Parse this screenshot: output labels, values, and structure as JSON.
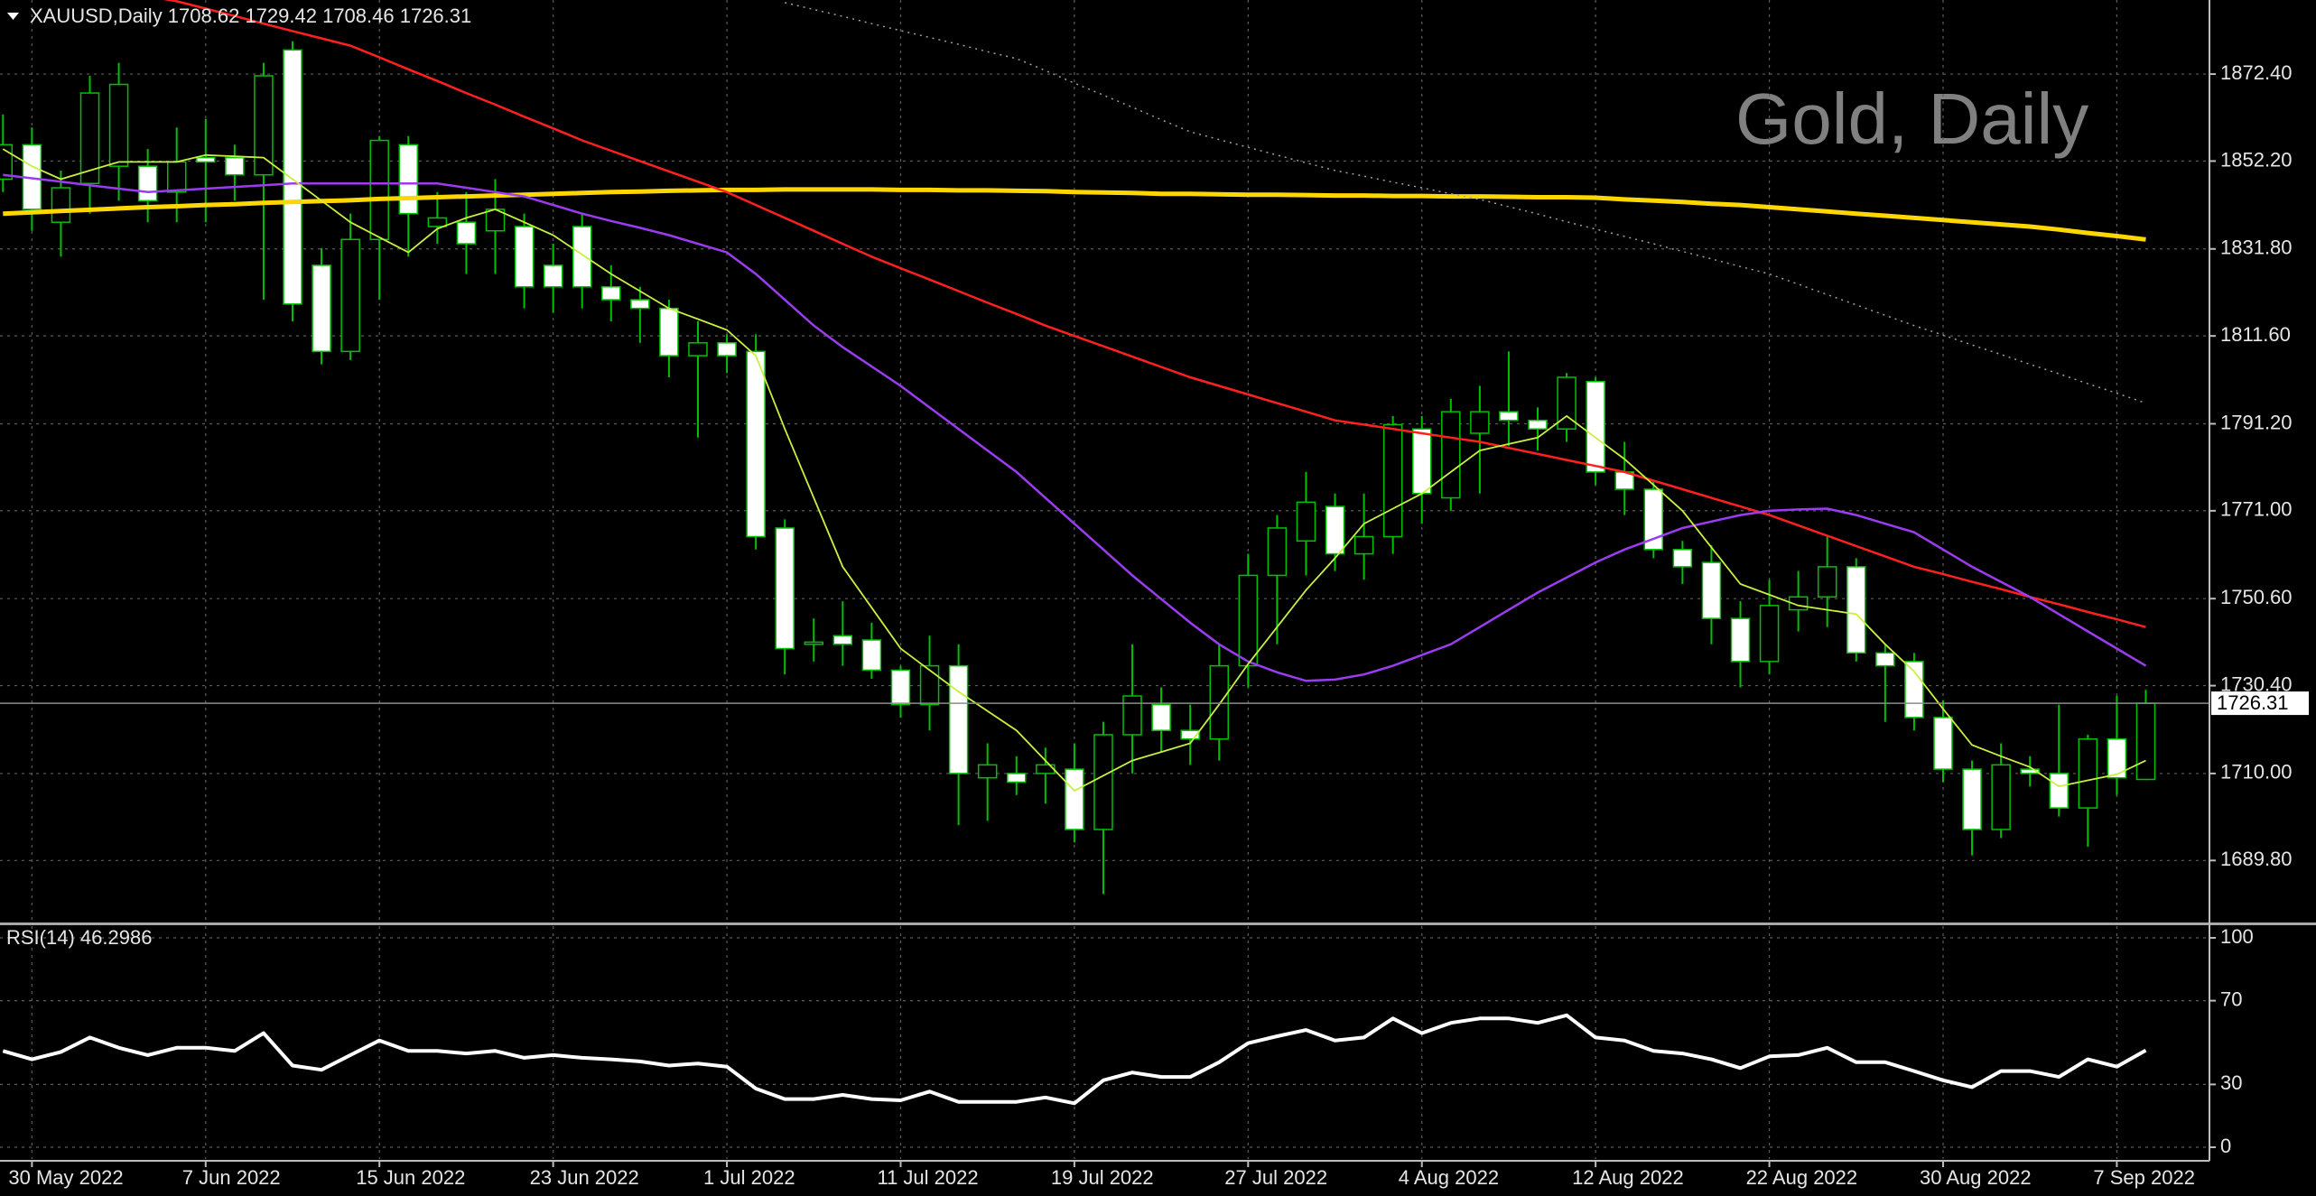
{
  "chart_data": [
    {
      "type": "candlestick",
      "title": "XAUUSD,Daily  1708.62 1729.42 1708.46 1726.31",
      "watermark": "Gold, Daily",
      "categories": [
        null,
        "30 May 2022",
        null,
        null,
        null,
        null,
        null,
        "7 Jun 2022",
        null,
        null,
        null,
        null,
        null,
        "15 Jun 2022",
        null,
        null,
        null,
        null,
        null,
        "23 Jun 2022",
        null,
        null,
        null,
        null,
        null,
        "1 Jul 2022",
        null,
        null,
        null,
        null,
        null,
        "11 Jul 2022",
        null,
        null,
        null,
        null,
        null,
        "19 Jul 2022",
        null,
        null,
        null,
        null,
        null,
        "27 Jul 2022",
        null,
        null,
        null,
        null,
        null,
        "4 Aug 2022",
        null,
        null,
        null,
        null,
        null,
        "12 Aug 2022",
        null,
        null,
        null,
        null,
        null,
        "22 Aug 2022",
        null,
        null,
        null,
        null,
        null,
        "30 Aug 2022",
        null,
        null,
        null,
        null,
        null,
        "7 Sep 2022",
        null
      ],
      "open": [
        1848,
        1856,
        1838,
        1847,
        1851,
        1851,
        1845,
        1853,
        1853,
        1849,
        1878,
        1828,
        1808,
        1834,
        1856,
        1837,
        1838,
        1836,
        1837,
        1828,
        1837,
        1823,
        1820,
        1818,
        1807,
        1810,
        1808,
        1767,
        1740,
        1742,
        1741,
        1734,
        1726,
        1735,
        1709,
        1710,
        1710,
        1711,
        1697,
        1719,
        1726,
        1720,
        1718,
        1735,
        1756,
        1764,
        1772,
        1761,
        1765,
        1790,
        1774,
        1789,
        1794,
        1792,
        1790,
        1801,
        1780,
        1776,
        1762,
        1759,
        1746,
        1736,
        1748,
        1751,
        1758,
        1738,
        1736,
        1723,
        1711,
        1697,
        1711,
        1710,
        1702,
        1718,
        1708.62
      ],
      "high": [
        1863,
        1860,
        1850,
        1872,
        1875,
        1855,
        1860,
        1862,
        1856,
        1875,
        1880,
        1832,
        1840,
        1858,
        1858,
        1845,
        1845,
        1848,
        1840,
        1833,
        1840,
        1828,
        1823,
        1820,
        1815,
        1812,
        1812,
        1769,
        1746,
        1750,
        1745,
        1735,
        1742,
        1740,
        1717,
        1714,
        1716,
        1717,
        1722,
        1740,
        1730,
        1726,
        1740,
        1761,
        1770,
        1780,
        1775,
        1775,
        1793,
        1793,
        1797,
        1800,
        1808,
        1795,
        1803,
        1802,
        1787,
        1778,
        1764,
        1763,
        1750,
        1755,
        1757,
        1765,
        1760,
        1740,
        1738,
        1727,
        1713,
        1717,
        1714,
        1726,
        1719,
        1728,
        1729.42
      ],
      "low": [
        1845,
        1836,
        1830,
        1840,
        1843,
        1838,
        1838,
        1838,
        1843,
        1820,
        1815,
        1805,
        1806,
        1820,
        1830,
        1833,
        1826,
        1826,
        1818,
        1817,
        1818,
        1815,
        1810,
        1802,
        1788,
        1803,
        1762,
        1733,
        1736,
        1735,
        1732,
        1723,
        1720,
        1698,
        1699,
        1705,
        1703,
        1694,
        1682,
        1710,
        1715,
        1712,
        1713,
        1730,
        1740,
        1756,
        1757,
        1755,
        1761,
        1768,
        1771,
        1775,
        1786,
        1785,
        1787,
        1777,
        1770,
        1760,
        1754,
        1740,
        1730,
        1733,
        1743,
        1744,
        1736,
        1722,
        1720,
        1708,
        1691,
        1695,
        1707,
        1700,
        1693,
        1705,
        1708.46
      ],
      "close": [
        1856,
        1841,
        1846,
        1868,
        1870,
        1843,
        1852,
        1852,
        1849,
        1872,
        1819,
        1808,
        1834,
        1857,
        1840,
        1839,
        1833,
        1841,
        1823,
        1823,
        1823,
        1820,
        1818,
        1807,
        1810,
        1807,
        1765,
        1739,
        1740.5,
        1740,
        1734,
        1726,
        1735,
        1710,
        1712,
        1708,
        1712,
        1697,
        1719,
        1728,
        1720,
        1718,
        1735,
        1756,
        1767,
        1773,
        1761,
        1765,
        1791,
        1775,
        1794,
        1794,
        1792,
        1790,
        1802,
        1780,
        1776,
        1762,
        1758,
        1746,
        1736,
        1749,
        1751,
        1758,
        1738,
        1735,
        1723,
        1711,
        1697,
        1712,
        1710,
        1702,
        1718,
        1709,
        1726.31
      ],
      "up_color": "#000000",
      "down_color": "#ffffff",
      "wick_color": "#00c000",
      "series": [
        {
          "color": "#ffd700",
          "values": [
            1840.0,
            1840.3,
            1840.6,
            1840.9,
            1841.2,
            1841.5,
            1841.7,
            1842.0,
            1842.2,
            1842.5,
            1842.7,
            1842.9,
            1843.1,
            1843.4,
            1843.6,
            1843.8,
            1844.0,
            1844.2,
            1844.4,
            1844.6,
            1844.8,
            1845.0,
            1845.1,
            1845.3,
            1845.4,
            1845.5,
            1845.5,
            1845.6,
            1845.6,
            1845.6,
            1845.6,
            1845.5,
            1845.5,
            1845.4,
            1845.4,
            1845.3,
            1845.2,
            1845.0,
            1844.9,
            1844.8,
            1844.6,
            1844.6,
            1844.5,
            1844.4,
            1844.4,
            1844.3,
            1844.2,
            1844.2,
            1844.1,
            1844.1,
            1844.0,
            1844.0,
            1843.9,
            1843.8,
            1843.8,
            1843.7,
            1843.3,
            1843.0,
            1842.7,
            1842.3,
            1842.0,
            1841.5,
            1841.0,
            1840.5,
            1840.0,
            1839.5,
            1839.0,
            1838.5,
            1838.0,
            1837.5,
            1837.0,
            1836.3,
            1835.5,
            1834.8,
            1834.0
          ]
        },
        {
          "color": "#ff2020",
          "values": [
            null,
            null,
            null,
            null,
            null,
            1890.5,
            1889.3,
            1887.6,
            1885.9,
            1884.1,
            1882.4,
            1880.7,
            1879,
            1876.3,
            1873.5,
            1870.8,
            1868,
            1865.3,
            1862.5,
            1859.8,
            1857,
            1854.6,
            1852.2,
            1849.8,
            1847.4,
            1845,
            1842,
            1839,
            1836,
            1833,
            1830,
            1827.3,
            1824.7,
            1822,
            1819.3,
            1816.7,
            1814,
            1811.6,
            1809.2,
            1806.8,
            1804.4,
            1802,
            1800,
            1798,
            1796,
            1794,
            1792,
            1791,
            1790,
            1789,
            1788,
            1787,
            1785.6,
            1784.2,
            1782.8,
            1781.4,
            1780,
            1778,
            1776,
            1774,
            1772,
            1770,
            1767.6,
            1765.2,
            1762.8,
            1760.4,
            1758,
            1756.3,
            1754.5,
            1752.8,
            1751,
            1749.3,
            1747.5,
            1745.8,
            1744
          ]
        },
        {
          "color": "#9b3cf0",
          "values": [
            1849,
            1848.2,
            1847.4,
            1846.6,
            1845.8,
            1845,
            1845.4,
            1845.8,
            1846.2,
            1846.6,
            1847,
            1847,
            1847,
            1847,
            1847,
            1847,
            1846,
            1845,
            1844,
            1842,
            1840,
            1838.3,
            1836.7,
            1835,
            1833,
            1831,
            1826,
            1820,
            1814,
            1809,
            1804.5,
            1800,
            1795,
            1790,
            1785,
            1780,
            1774,
            1768,
            1762,
            1756,
            1750.5,
            1745,
            1740,
            1736,
            1733.5,
            1731.5,
            1731.8,
            1733,
            1735,
            1737.5,
            1740,
            1744,
            1748,
            1752,
            1755.5,
            1759,
            1762,
            1764.5,
            1767,
            1768.5,
            1770,
            1771,
            1771.3,
            1771.5,
            1770,
            1768,
            1766,
            1762,
            1758,
            1754.5,
            1751,
            1747,
            1743,
            1739,
            1735
          ]
        },
        {
          "color": "#c8f040",
          "values": [
            1855,
            1851,
            1848,
            1850,
            1852,
            1852,
            1852,
            1853.6,
            1853.3,
            1853,
            1848,
            1843,
            1838,
            1834.5,
            1831,
            1836.5,
            1839,
            1841,
            1838,
            1835,
            1830.5,
            1826,
            1822,
            1818,
            1815.5,
            1813,
            1807,
            1790,
            1774,
            1758,
            1748.5,
            1739,
            1734,
            1729,
            1724.5,
            1720,
            1713,
            1706,
            1709.5,
            1713,
            1715,
            1717,
            1726,
            1735.4,
            1744,
            1752.6,
            1760,
            1768,
            1771.5,
            1775,
            1780,
            1785,
            1786.5,
            1788,
            1793,
            1788,
            1783,
            1777,
            1771,
            1762.5,
            1754,
            1751.5,
            1749,
            1748,
            1747,
            1740,
            1733.7,
            1725,
            1716.6,
            1714,
            1711.5,
            1707,
            1708.4,
            1709.8,
            1713
          ]
        },
        {
          "color": "#a0a0a0",
          "style": "dotted",
          "values": [
            null,
            null,
            null,
            null,
            null,
            null,
            null,
            null,
            null,
            null,
            null,
            null,
            null,
            null,
            null,
            null,
            null,
            null,
            null,
            null,
            null,
            null,
            null,
            null,
            null,
            null,
            null,
            1889,
            1887.4,
            1885.8,
            1884.1,
            1882.5,
            1880.9,
            1879.3,
            1877.6,
            1876,
            1873.2,
            1870.3,
            1867.5,
            1864.7,
            1861.8,
            1859,
            1857.2,
            1855.4,
            1853.6,
            1851.8,
            1850,
            1848.7,
            1847.3,
            1846,
            1844.6,
            1843.3,
            1841.6,
            1839.9,
            1838.1,
            1836.4,
            1834.7,
            1833,
            1831.2,
            1829.5,
            1827.7,
            1826,
            1823.6,
            1821.2,
            1818.8,
            1816.4,
            1814,
            1811.8,
            1809.5,
            1807.3,
            1805,
            1802.8,
            1800.5,
            1798.3,
            1796
          ]
        }
      ],
      "ylim": [
        1675.4,
        1889.6
      ],
      "yticks": [
        {
          "value": 1689.8,
          "label": "1689.80"
        },
        {
          "value": 1710,
          "label": "1710.00"
        },
        {
          "value": 1730.4,
          "label": "1730.40"
        },
        {
          "value": 1750.6,
          "label": "1750.60"
        },
        {
          "value": 1771,
          "label": "1771.00"
        },
        {
          "value": 1791.2,
          "label": "1791.20"
        },
        {
          "value": 1811.6,
          "label": "1811.60"
        },
        {
          "value": 1831.8,
          "label": "1831.80"
        },
        {
          "value": 1852.2,
          "label": "1852.20"
        },
        {
          "value": 1872.4,
          "label": "1872.40"
        }
      ],
      "last_price": 1726.31,
      "grid": true
    },
    {
      "type": "line",
      "title": "RSI(14) 46.2986",
      "color": "#ffffff",
      "values": [
        46,
        42,
        45.5,
        52.4,
        47.5,
        44,
        47.5,
        47.5,
        46,
        54.5,
        39,
        37,
        44,
        51,
        46,
        46,
        44.8,
        46,
        42.7,
        44,
        42.7,
        42,
        41,
        39,
        40,
        38.5,
        28,
        23,
        23,
        25,
        23,
        22.4,
        26.6,
        21.7,
        21.7,
        21.7,
        23.8,
        21,
        32,
        35.7,
        33.6,
        33.6,
        40.6,
        49.7,
        53,
        56,
        51,
        52.4,
        61.5,
        54.5,
        59.4,
        61.5,
        61.5,
        59.4,
        63,
        52.4,
        51,
        46,
        44.8,
        42,
        37.8,
        43.4,
        44,
        47.5,
        40.6,
        40.6,
        36.4,
        32,
        28.7,
        36.4,
        36.4,
        33.6,
        42,
        38.5,
        46.2986
      ],
      "ylim": [
        -5.6,
        105.6
      ],
      "yticks": [
        0,
        30,
        70,
        100
      ],
      "grid": true
    }
  ]
}
